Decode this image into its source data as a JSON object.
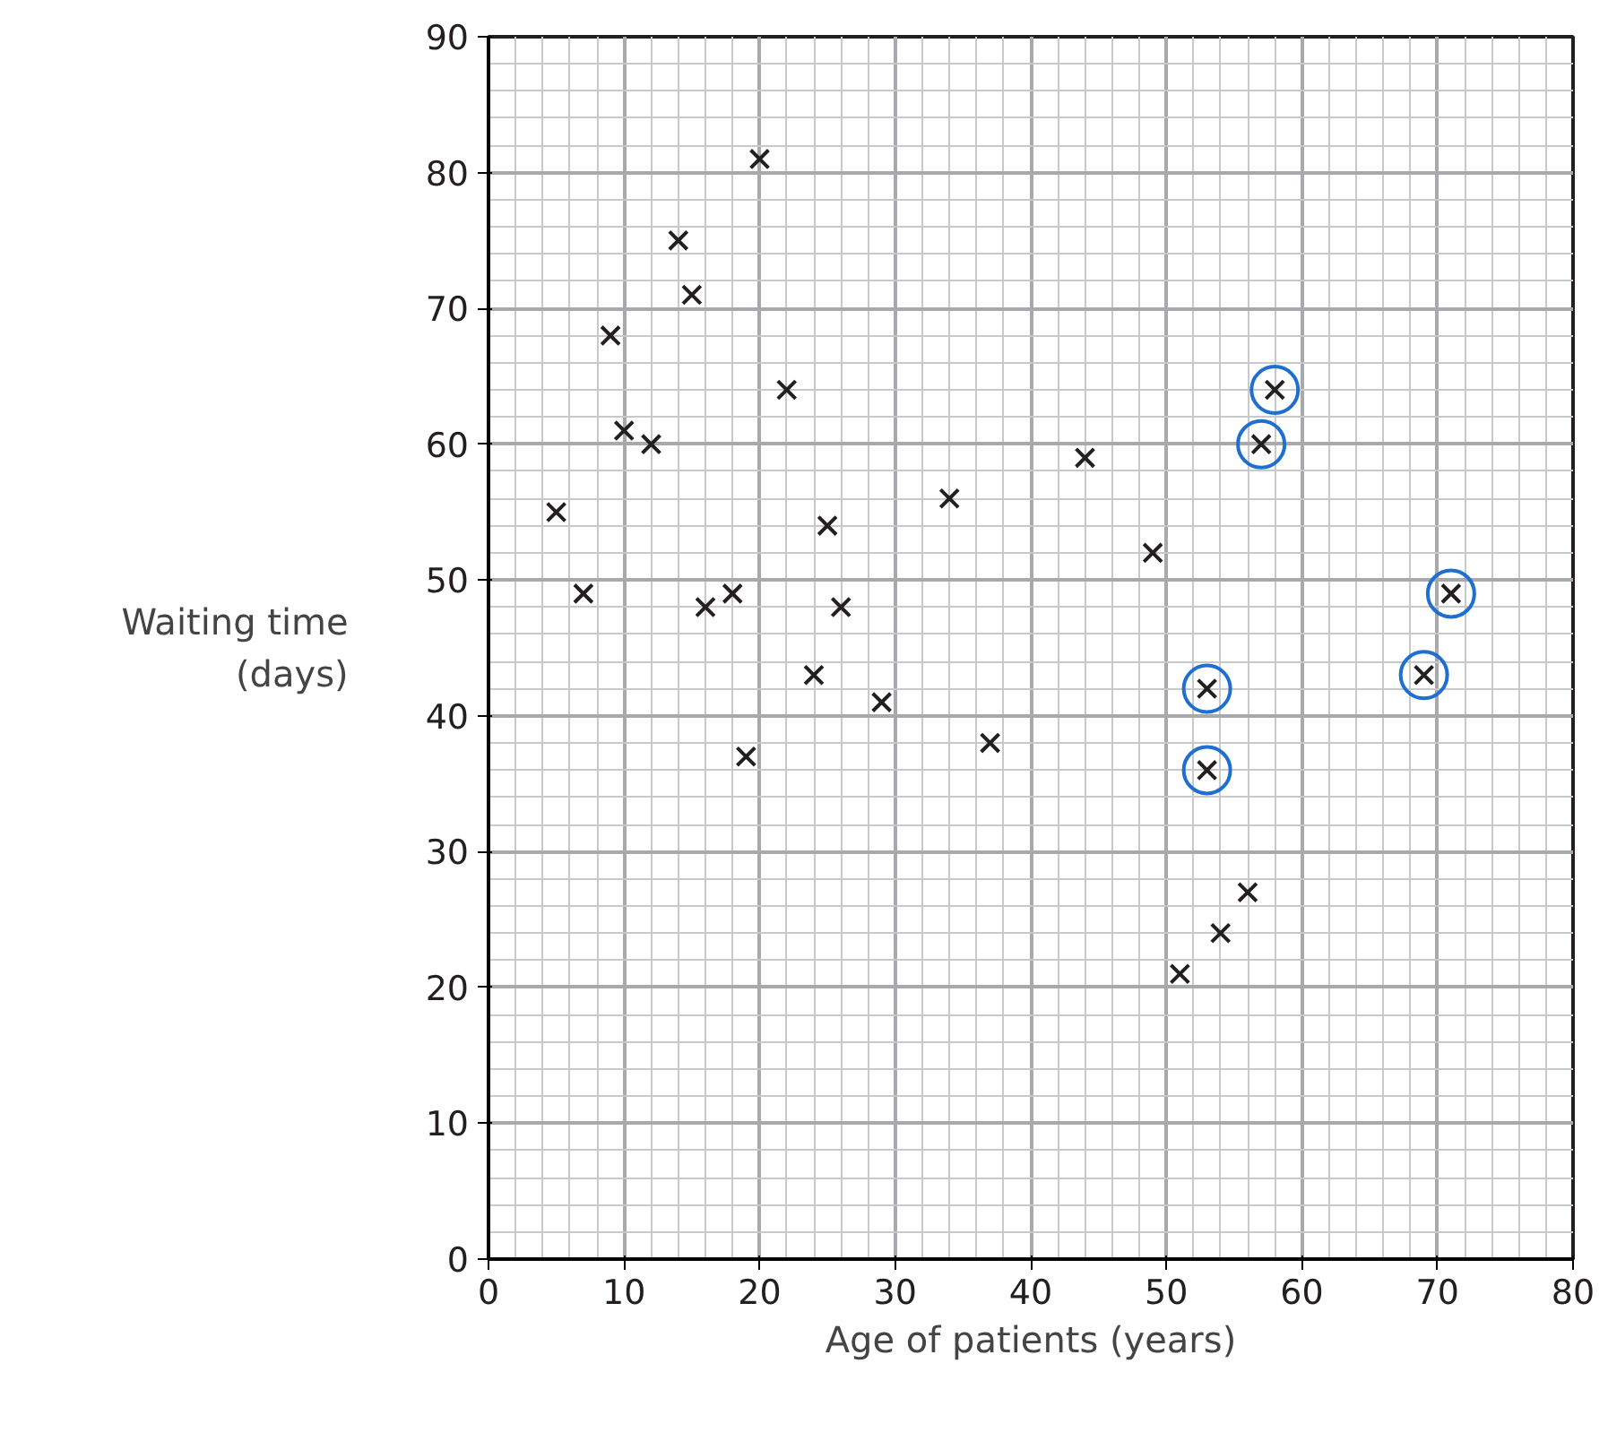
{
  "chart_data": {
    "type": "scatter",
    "xlabel": "Age of patients (years)",
    "ylabel": "Waiting time\n(days)",
    "xlim": [
      0,
      80
    ],
    "ylim": [
      0,
      90
    ],
    "xticks": [
      0,
      10,
      20,
      30,
      40,
      50,
      60,
      70,
      80
    ],
    "yticks": [
      0,
      10,
      20,
      30,
      40,
      50,
      60,
      70,
      80,
      90
    ],
    "grid": true,
    "series": [
      {
        "color": "#231f20",
        "marker": "cross",
        "x": [
          5,
          7,
          9,
          10,
          12,
          14,
          15,
          16,
          18,
          19,
          20,
          22,
          24,
          25,
          26,
          29,
          34,
          37,
          44,
          49,
          51,
          53,
          53,
          54,
          56,
          57,
          58,
          69,
          71
        ],
        "values": [
          55,
          49,
          68,
          61,
          60,
          75,
          71,
          48,
          49,
          37,
          81,
          64,
          43,
          54,
          48,
          41,
          56,
          38,
          59,
          52,
          21,
          42,
          36,
          24,
          27,
          60,
          64,
          43,
          49
        ]
      },
      {
        "color": "#1f6fd1",
        "marker": "circle",
        "x": [
          53,
          53,
          57,
          58,
          69,
          71
        ],
        "values": [
          42,
          36,
          60,
          64,
          43,
          49
        ]
      }
    ]
  }
}
